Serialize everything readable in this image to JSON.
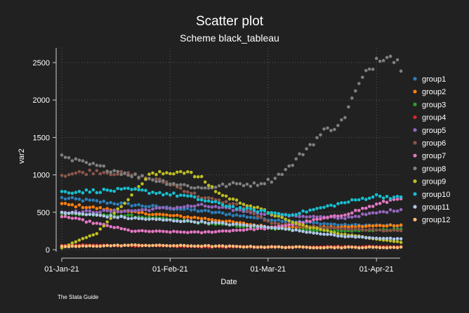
{
  "chart_data": {
    "type": "scatter",
    "title": "Scatter plot",
    "subtitle": "Scheme black_tableau",
    "xlabel": "Date",
    "ylabel": "var2",
    "note": "The Stata Guide",
    "x_start": "2021-01-01",
    "x_ticks": [
      "01-Jan-21",
      "01-Feb-21",
      "01-Mar-21",
      "01-Apr-21"
    ],
    "y_ticks": [
      "0",
      "500",
      "1000",
      "1500",
      "2000",
      "2500"
    ],
    "ylim": [
      0,
      2650
    ],
    "grid": true,
    "legend_position": "right",
    "series": [
      {
        "name": "group1",
        "color": "#2d7fb8",
        "anchors": [
          [
            0,
            690
          ],
          [
            20,
            600
          ],
          [
            40,
            520
          ],
          [
            60,
            400
          ],
          [
            80,
            330
          ],
          [
            97,
            320
          ]
        ]
      },
      {
        "name": "group2",
        "color": "#ff7f0e",
        "anchors": [
          [
            0,
            610
          ],
          [
            20,
            500
          ],
          [
            40,
            420
          ],
          [
            60,
            300
          ],
          [
            80,
            300
          ],
          [
            97,
            330
          ]
        ]
      },
      {
        "name": "group3",
        "color": "#2ca02c",
        "anchors": [
          [
            0,
            480
          ],
          [
            20,
            450
          ],
          [
            40,
            360
          ],
          [
            60,
            280
          ],
          [
            80,
            250
          ],
          [
            97,
            270
          ]
        ]
      },
      {
        "name": "group4",
        "color": "#d62728",
        "anchors": [
          [
            0,
            60
          ],
          [
            20,
            55
          ],
          [
            40,
            40
          ],
          [
            60,
            35
          ],
          [
            80,
            40
          ],
          [
            97,
            40
          ]
        ]
      },
      {
        "name": "group5",
        "color": "#9467bd",
        "anchors": [
          [
            0,
            500
          ],
          [
            20,
            520
          ],
          [
            40,
            590
          ],
          [
            60,
            470
          ],
          [
            80,
            420
          ],
          [
            97,
            540
          ]
        ]
      },
      {
        "name": "group6",
        "color": "#8c564b",
        "anchors": [
          [
            0,
            1000
          ],
          [
            10,
            1050
          ],
          [
            20,
            1000
          ],
          [
            30,
            900
          ],
          [
            40,
            700
          ],
          [
            50,
            600
          ],
          [
            60,
            350
          ],
          [
            80,
            280
          ],
          [
            97,
            250
          ]
        ]
      },
      {
        "name": "group7",
        "color": "#e377c2",
        "anchors": [
          [
            0,
            450
          ],
          [
            20,
            250
          ],
          [
            40,
            230
          ],
          [
            60,
            290
          ],
          [
            80,
            460
          ],
          [
            97,
            700
          ]
        ]
      },
      {
        "name": "group8",
        "color": "#7f7f7f",
        "anchors": [
          [
            0,
            1230
          ],
          [
            20,
            1000
          ],
          [
            30,
            900
          ],
          [
            40,
            820
          ],
          [
            50,
            880
          ],
          [
            55,
            870
          ],
          [
            60,
            930
          ],
          [
            65,
            1100
          ],
          [
            70,
            1350
          ],
          [
            75,
            1580
          ],
          [
            80,
            1700
          ],
          [
            85,
            2200
          ],
          [
            90,
            2550
          ],
          [
            93,
            2630
          ],
          [
            97,
            2460
          ]
        ]
      },
      {
        "name": "group9",
        "color": "#bcbd22",
        "anchors": [
          [
            0,
            30
          ],
          [
            10,
            220
          ],
          [
            25,
            1000
          ],
          [
            35,
            1050
          ],
          [
            40,
            950
          ],
          [
            45,
            750
          ],
          [
            50,
            650
          ],
          [
            58,
            520
          ],
          [
            64,
            400
          ],
          [
            70,
            310
          ],
          [
            80,
            210
          ],
          [
            97,
            100
          ]
        ]
      },
      {
        "name": "group10",
        "color": "#17becf",
        "anchors": [
          [
            0,
            770
          ],
          [
            20,
            800
          ],
          [
            35,
            720
          ],
          [
            50,
            560
          ],
          [
            65,
            460
          ],
          [
            80,
            620
          ],
          [
            90,
            720
          ],
          [
            97,
            690
          ]
        ]
      },
      {
        "name": "group11",
        "color": "#aec7e8",
        "anchors": [
          [
            0,
            500
          ],
          [
            20,
            420
          ],
          [
            40,
            370
          ],
          [
            60,
            300
          ],
          [
            80,
            180
          ],
          [
            97,
            140
          ]
        ]
      },
      {
        "name": "group12",
        "color": "#ffbb78",
        "anchors": [
          [
            0,
            40
          ],
          [
            20,
            60
          ],
          [
            40,
            50
          ],
          [
            60,
            35
          ],
          [
            80,
            30
          ],
          [
            97,
            30
          ]
        ]
      }
    ]
  }
}
